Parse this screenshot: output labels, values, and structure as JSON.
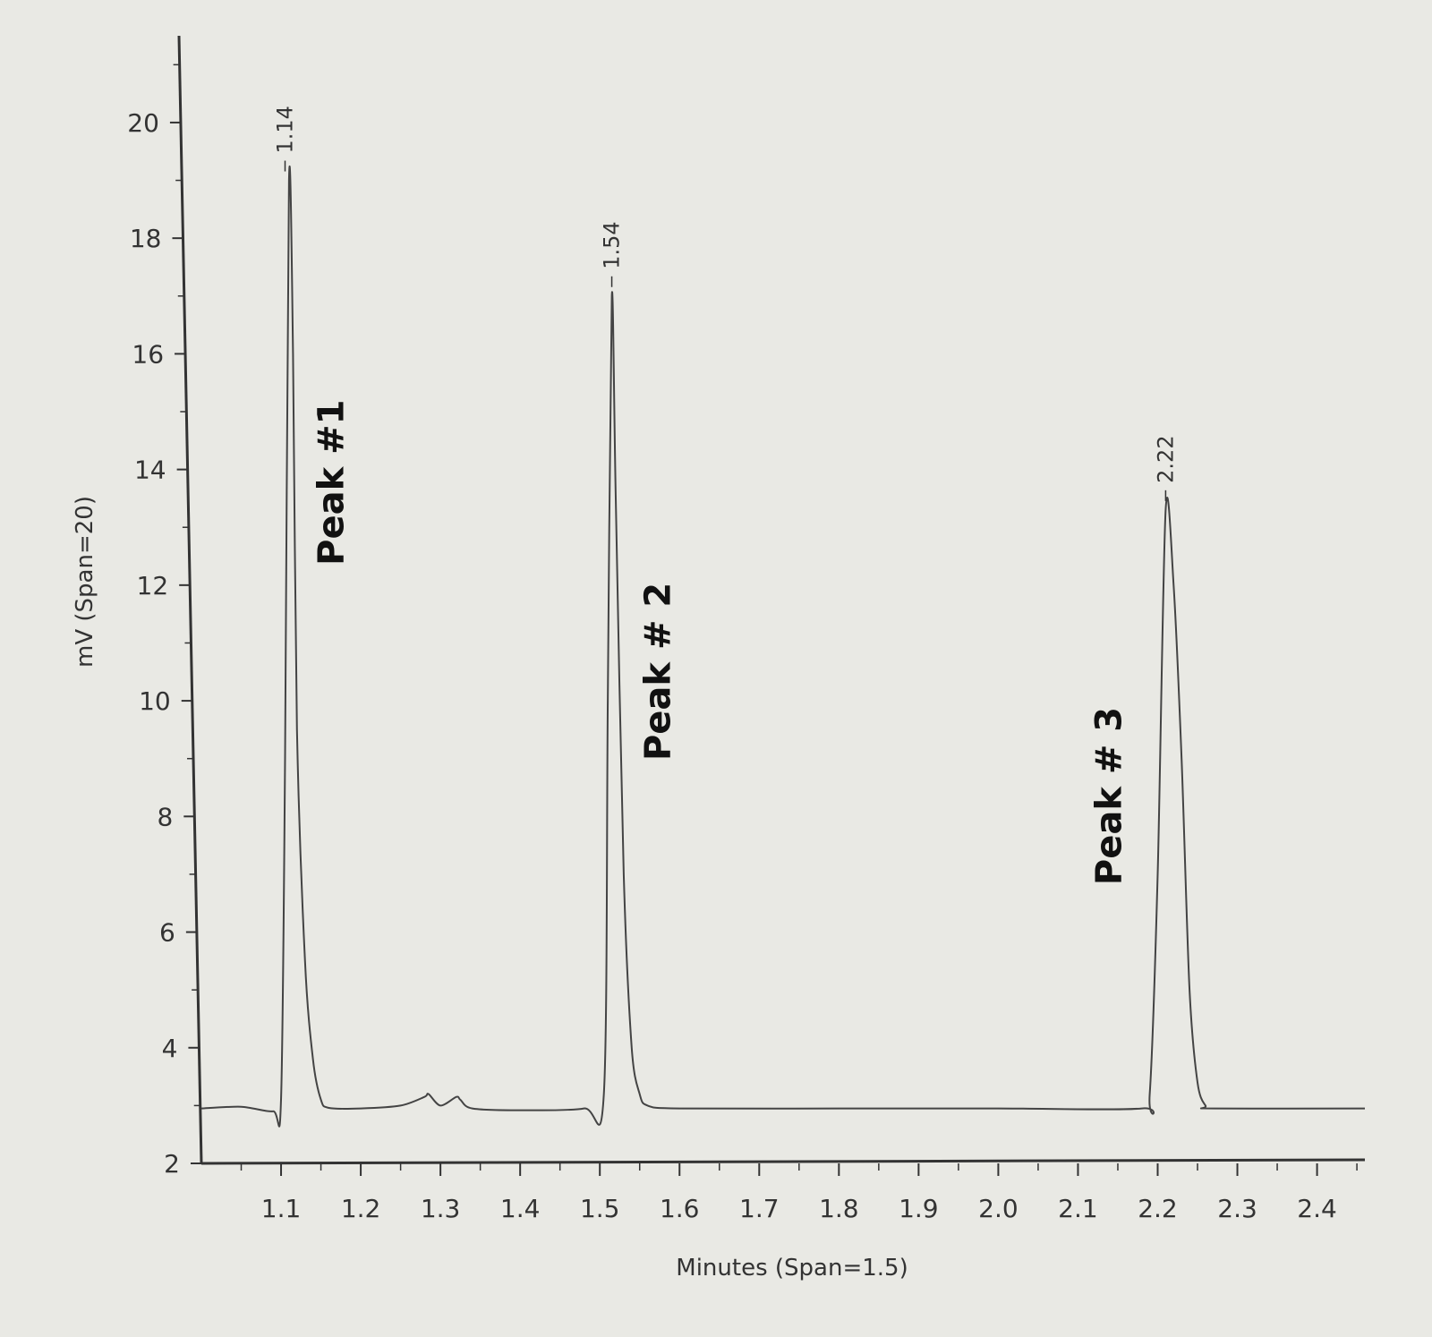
{
  "chart_data": {
    "type": "line",
    "title": "",
    "xlabel": "Minutes (Span=1.5)",
    "ylabel": "mV (Span=20)",
    "xlim": [
      1.0,
      2.46
    ],
    "ylim": [
      2,
      21.5
    ],
    "x_ticks": [
      "1.1",
      "1.2",
      "1.3",
      "1.4",
      "1.5",
      "1.6",
      "1.7",
      "1.8",
      "1.9",
      "2.0",
      "2.1",
      "2.2",
      "2.3",
      "2.4"
    ],
    "y_ticks": [
      "2",
      "4",
      "6",
      "8",
      "10",
      "12",
      "14",
      "16",
      "18",
      "20"
    ],
    "baseline": 2.95,
    "series": [
      {
        "x": [
          1.0,
          1.05,
          1.09,
          1.1,
          1.105,
          1.11,
          1.115,
          1.12,
          1.13,
          1.14,
          1.15,
          1.16,
          1.2,
          1.25,
          1.28,
          1.285,
          1.3,
          1.32,
          1.325,
          1.34,
          1.4,
          1.48,
          1.505,
          1.51,
          1.515,
          1.52,
          1.53,
          1.54,
          1.55,
          1.56,
          1.6,
          1.8,
          2.0,
          2.18,
          2.19,
          2.2,
          2.21,
          2.22,
          2.23,
          2.24,
          2.25,
          2.26,
          2.27,
          2.46
        ],
        "y": [
          2.95,
          2.98,
          2.9,
          3.1,
          9.0,
          19.0,
          16.0,
          9.5,
          5.5,
          3.8,
          3.1,
          2.96,
          2.95,
          3.0,
          3.15,
          3.2,
          3.0,
          3.15,
          3.1,
          2.95,
          2.92,
          2.95,
          3.2,
          10.0,
          17.0,
          13.5,
          7.0,
          4.0,
          3.2,
          3.0,
          2.95,
          2.95,
          2.95,
          2.95,
          3.2,
          7.0,
          13.3,
          12.0,
          9.0,
          5.0,
          3.4,
          3.0,
          2.95,
          2.95
        ]
      }
    ],
    "annotations": [
      {
        "rt": "1.14",
        "note": "Peak #1",
        "x": 1.105,
        "y": 19.0
      },
      {
        "rt": "1.54",
        "note": "Peak # 2",
        "x": 1.515,
        "y": 17.0
      },
      {
        "rt": "2.22",
        "note": "Peak # 3",
        "x": 2.21,
        "y": 13.3
      }
    ],
    "grid": false,
    "legend": "none"
  }
}
